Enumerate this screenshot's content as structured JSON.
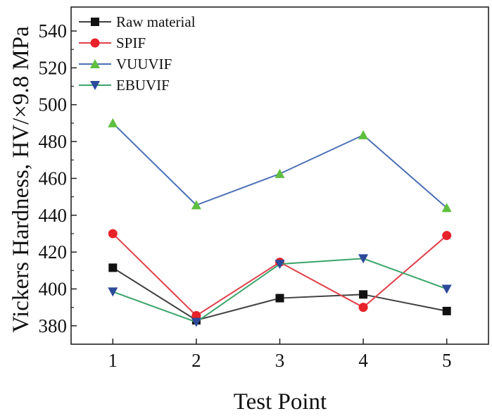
{
  "chart_data": {
    "type": "line",
    "title": "",
    "xlabel": "Test Point",
    "ylabel": "Vickers Hardness, HV/×9.8 MPa",
    "x": [
      1,
      2,
      3,
      4,
      5
    ],
    "xlim": [
      0.5,
      5.5
    ],
    "ylim": [
      370,
      553
    ],
    "xticks": [
      1,
      2,
      3,
      4,
      5
    ],
    "yticks": [
      380,
      400,
      420,
      440,
      460,
      480,
      500,
      520,
      540
    ],
    "grid": false,
    "legend_position": "top-left",
    "series": [
      {
        "name": "Raw material",
        "values": [
          411.5,
          383,
          395,
          397,
          388
        ],
        "line_color": "#404040",
        "marker_color": "#111111",
        "marker": "square"
      },
      {
        "name": "SPIF",
        "values": [
          430,
          385.5,
          414.5,
          390,
          429
        ],
        "line_color": "#e0404a",
        "marker_color": "#e8222a",
        "marker": "circle"
      },
      {
        "name": "VUUVIF",
        "values": [
          490,
          445.5,
          462.5,
          483.5,
          444
        ],
        "line_color": "#4a6fb5",
        "marker_color": "#5fbf3f",
        "marker": "triangle-up"
      },
      {
        "name": "EBUVIF",
        "values": [
          398.5,
          382,
          413.5,
          416.5,
          400
        ],
        "line_color": "#3aa56a",
        "marker_color": "#2d4a9a",
        "marker": "triangle-down"
      }
    ]
  }
}
